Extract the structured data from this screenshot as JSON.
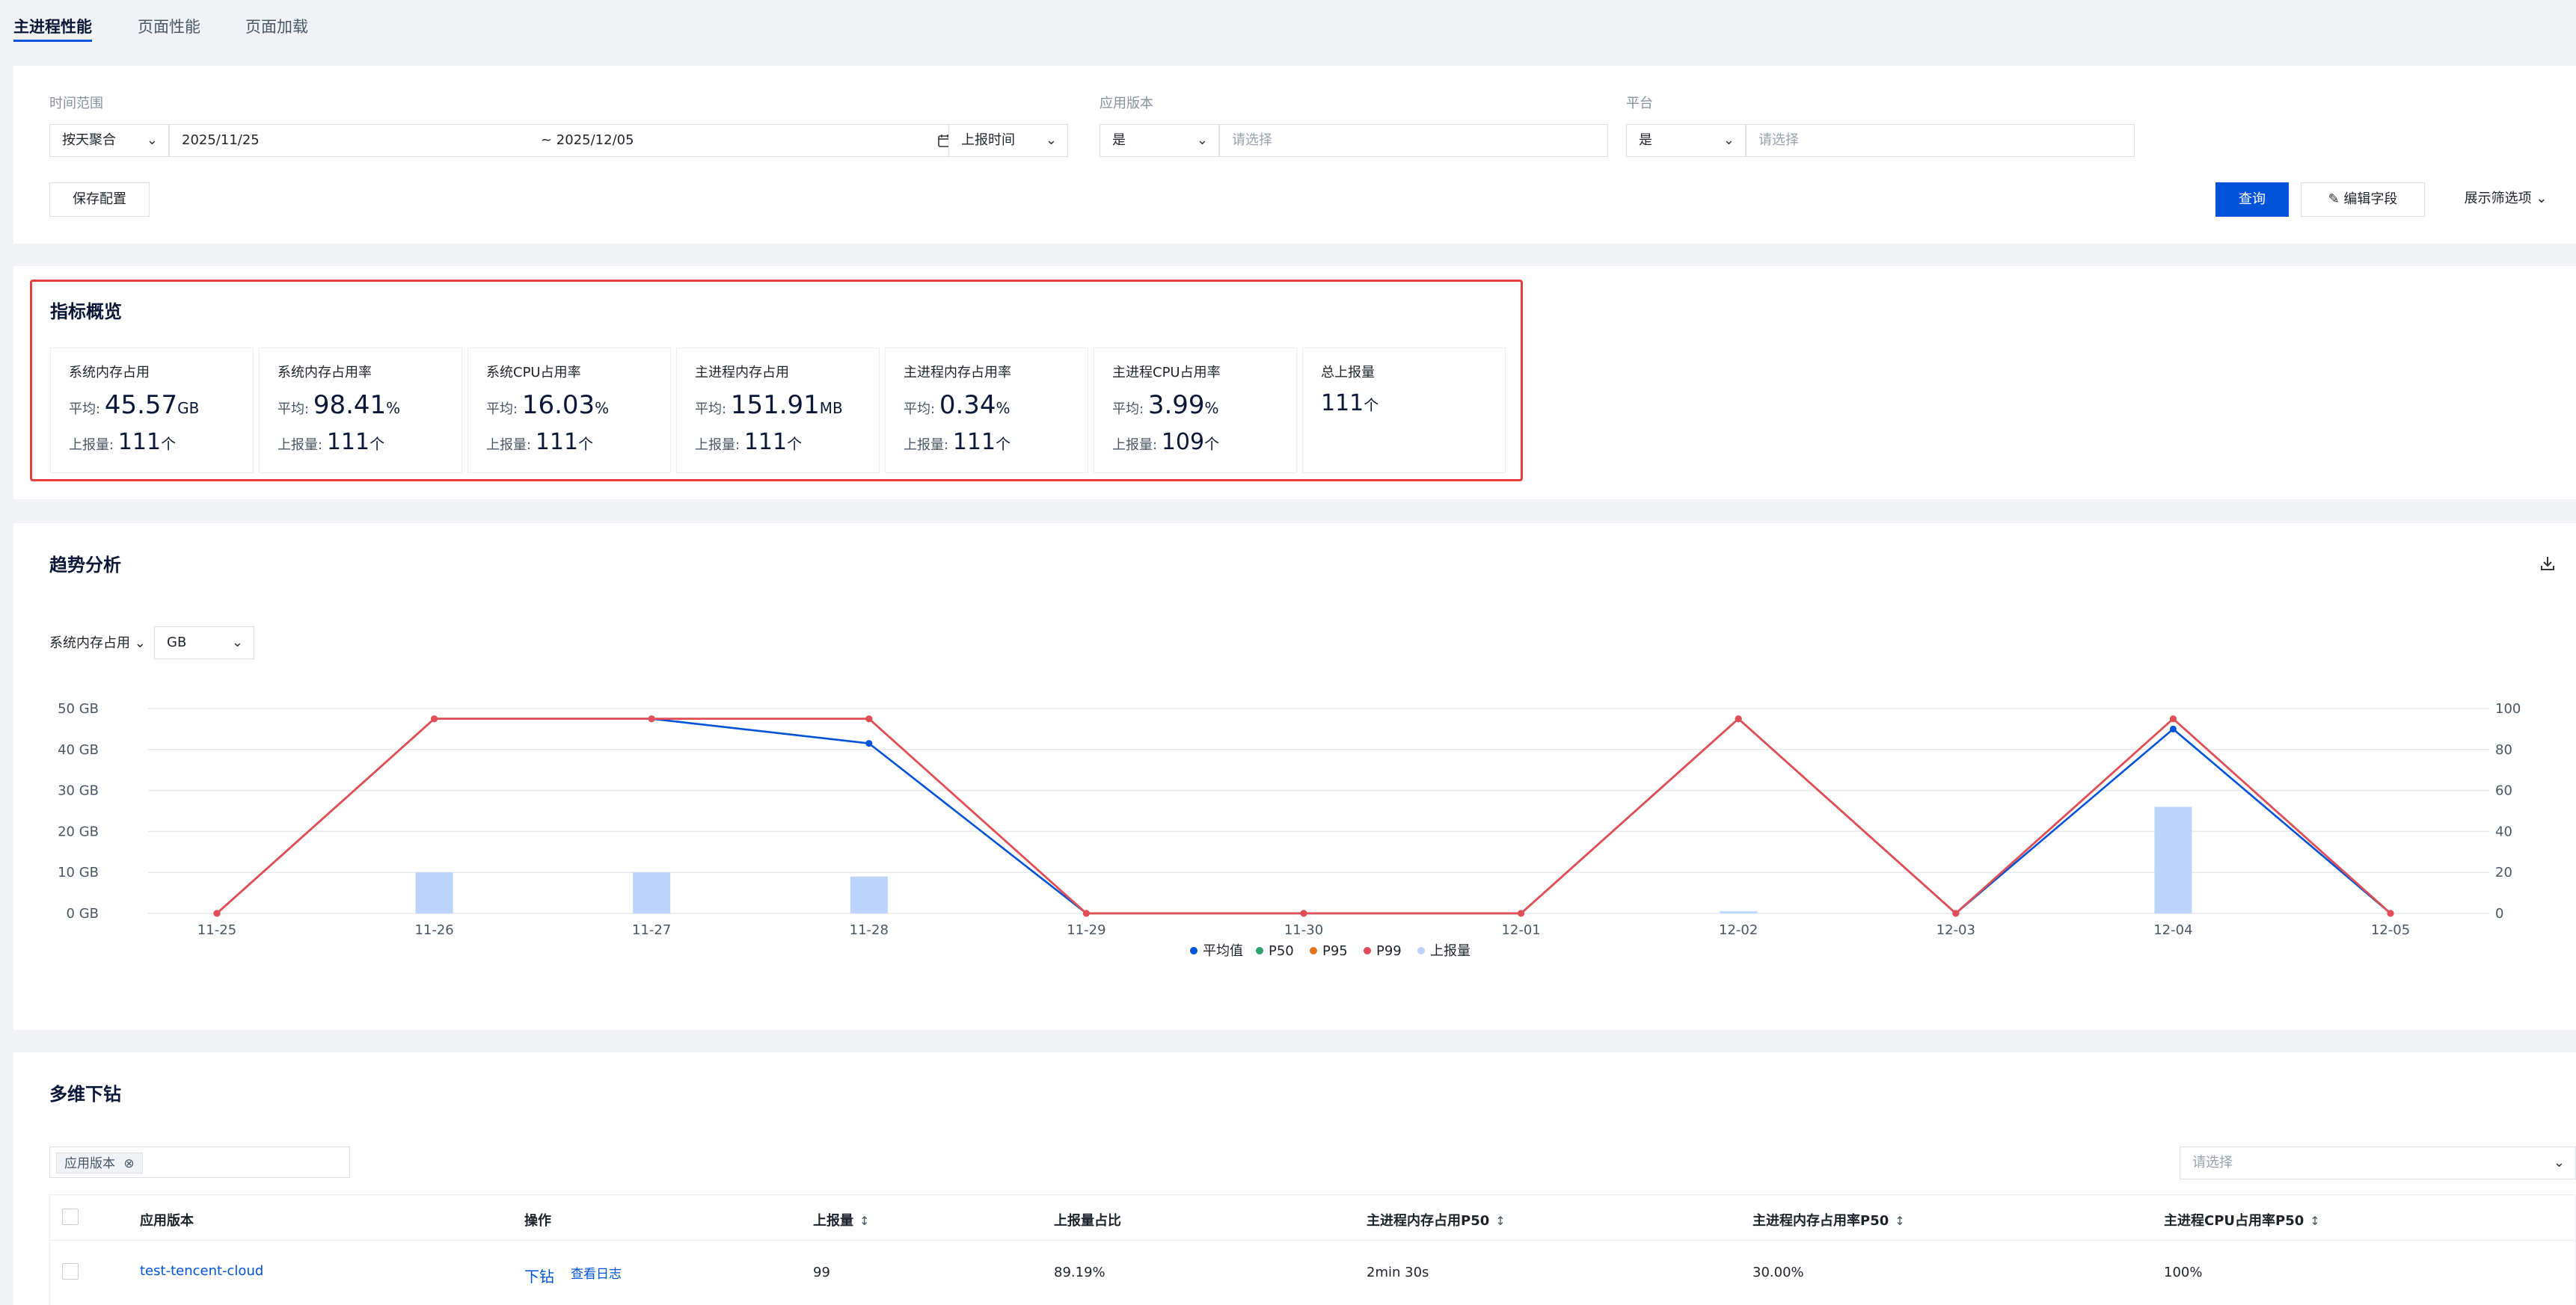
{
  "tabs": [
    "主进程性能",
    "页面性能",
    "页面加载"
  ],
  "filters": {
    "time_label": "时间范围",
    "agg_value": "按天聚合",
    "date_start": "2025/11/25",
    "date_end": "~ 2025/12/05",
    "time_type": "上报时间",
    "app_version_label": "应用版本",
    "app_version_op": "是",
    "app_version_placeholder": "请选择",
    "platform_label": "平台",
    "platform_op": "是",
    "platform_placeholder": "请选择",
    "save_config": "保存配置",
    "query": "查询",
    "edit_fields": "编辑字段",
    "show_filters": "展示筛选项"
  },
  "overview": {
    "title": "指标概览",
    "avg_label": "平均:",
    "count_label": "上报量:",
    "count_unit": "个",
    "metrics": [
      {
        "title": "系统内存占用",
        "avg": "45.57",
        "unit": "GB",
        "count": "111"
      },
      {
        "title": "系统内存占用率",
        "avg": "98.41",
        "unit": "%",
        "count": "111"
      },
      {
        "title": "系统CPU占用率",
        "avg": "16.03",
        "unit": "%",
        "count": "111"
      },
      {
        "title": "主进程内存占用",
        "avg": "151.91",
        "unit": "MB",
        "count": "111"
      },
      {
        "title": "主进程内存占用率",
        "avg": "0.34",
        "unit": "%",
        "count": "111"
      },
      {
        "title": "主进程CPU占用率",
        "avg": "3.99",
        "unit": "%",
        "count": "109"
      }
    ],
    "total": {
      "title": "总上报量",
      "value": "111",
      "unit": "个"
    }
  },
  "trend": {
    "title": "趋势分析",
    "metric_select": "系统内存占用",
    "unit_select": "GB",
    "download_icon": "download-icon"
  },
  "chart_data": {
    "type": "line",
    "categories": [
      "11-25",
      "11-26",
      "11-27",
      "11-28",
      "11-29",
      "11-30",
      "12-01",
      "12-02",
      "12-03",
      "12-04",
      "12-05"
    ],
    "y_left_ticks": [
      "0 GB",
      "10 GB",
      "20 GB",
      "30 GB",
      "40 GB",
      "50 GB"
    ],
    "y_right_ticks": [
      "0",
      "20",
      "40",
      "60",
      "80",
      "100"
    ],
    "ylim_left": [
      0,
      50
    ],
    "ylim_right": [
      0,
      100
    ],
    "grid": true,
    "legend_position": "bottom",
    "series": [
      {
        "name": "平均值",
        "type": "line",
        "axis": "left",
        "color": "#0052d9",
        "values": [
          0,
          47.5,
          47.5,
          41.5,
          0,
          0,
          0,
          47.5,
          0,
          45,
          0
        ]
      },
      {
        "name": "P50",
        "type": "line",
        "axis": "left",
        "color": "#2ba471",
        "values": [
          0,
          47.5,
          47.5,
          47.5,
          0,
          0,
          0,
          47.5,
          0,
          47.5,
          0
        ]
      },
      {
        "name": "P95",
        "type": "line",
        "axis": "left",
        "color": "#e37318",
        "values": [
          0,
          47.5,
          47.5,
          47.5,
          0,
          0,
          0,
          47.5,
          0,
          47.5,
          0
        ]
      },
      {
        "name": "P99",
        "type": "line",
        "axis": "left",
        "color": "#e34d59",
        "values": [
          0,
          47.5,
          47.5,
          47.5,
          0,
          0,
          0,
          47.5,
          0,
          47.5,
          0
        ]
      },
      {
        "name": "上报量",
        "type": "bar",
        "axis": "right",
        "color": "#bcd4fb",
        "values": [
          0,
          20,
          20,
          18,
          0,
          0,
          0,
          1,
          0,
          52,
          0
        ]
      }
    ]
  },
  "drilldown": {
    "title": "多维下钻",
    "tag": "应用版本",
    "right_select_placeholder": "请选择",
    "columns": [
      "应用版本",
      "操作",
      "上报量",
      "上报量占比",
      "主进程内存占用P50",
      "主进程内存占用率P50",
      "主进程CPU占用率P50"
    ],
    "rows": [
      {
        "version": "test-tencent-cloud",
        "op_drill": "下钻",
        "op_log": "查看日志",
        "count": "99",
        "ratio": "89.19%",
        "mem_p50": "2min 30s",
        "mem_rate_p50": "30.00%",
        "cpu_p50": "100%"
      }
    ]
  }
}
